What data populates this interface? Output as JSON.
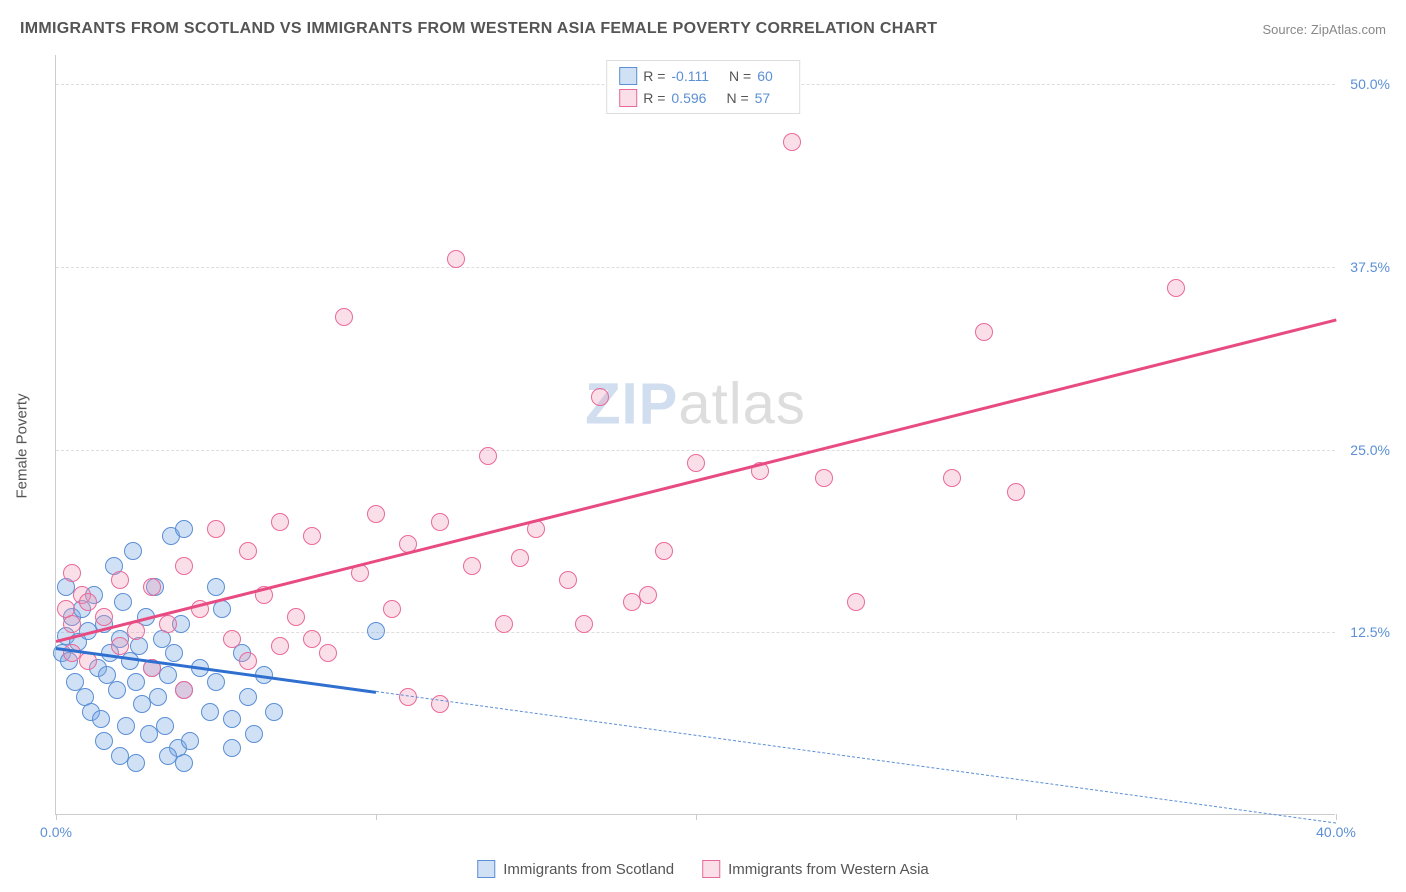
{
  "title": "IMMIGRANTS FROM SCOTLAND VS IMMIGRANTS FROM WESTERN ASIA FEMALE POVERTY CORRELATION CHART",
  "source": "Source: ZipAtlas.com",
  "y_axis_label": "Female Poverty",
  "watermark": {
    "left": "ZIP",
    "right": "atlas"
  },
  "chart": {
    "type": "scatter",
    "xlim": [
      0,
      40
    ],
    "ylim": [
      0,
      52
    ],
    "x_ticks": [
      0,
      10,
      20,
      30,
      40
    ],
    "x_tick_labels": [
      "0.0%",
      "",
      "",
      "",
      "40.0%"
    ],
    "y_ticks": [
      12.5,
      25.0,
      37.5,
      50.0
    ],
    "y_tick_labels": [
      "12.5%",
      "25.0%",
      "37.5%",
      "50.0%"
    ],
    "grid_color": "#dddddd",
    "background_color": "#ffffff",
    "axis_color": "#cccccc",
    "tick_label_color": "#5b8fd6",
    "axis_label_color": "#555555",
    "axis_label_fontsize": 15
  },
  "series": [
    {
      "name": "Immigrants from Scotland",
      "R": "-0.111",
      "N": "60",
      "marker_fill": "rgba(120,170,230,0.35)",
      "marker_stroke": "#5b8fd6",
      "marker_radius": 9,
      "legend_swatch_fill": "rgba(120,170,230,0.35)",
      "legend_swatch_stroke": "#5b8fd6",
      "trend": {
        "color": "#2f6fd0",
        "width": 2.5,
        "x1": 0,
        "y1": 11.5,
        "x2": 10,
        "y2": 8.5,
        "extrapolate_x2": 40,
        "extrapolate_y2": -0.5,
        "dash_color": "#5b8fd6"
      },
      "points": [
        [
          0.2,
          11.0
        ],
        [
          0.3,
          12.2
        ],
        [
          0.4,
          10.5
        ],
        [
          0.5,
          13.5
        ],
        [
          0.6,
          9.0
        ],
        [
          0.7,
          11.8
        ],
        [
          0.8,
          14.0
        ],
        [
          0.9,
          8.0
        ],
        [
          1.0,
          12.5
        ],
        [
          1.1,
          7.0
        ],
        [
          1.2,
          15.0
        ],
        [
          1.3,
          10.0
        ],
        [
          1.4,
          6.5
        ],
        [
          1.5,
          13.0
        ],
        [
          1.6,
          9.5
        ],
        [
          1.7,
          11.0
        ],
        [
          1.8,
          17.0
        ],
        [
          1.9,
          8.5
        ],
        [
          2.0,
          12.0
        ],
        [
          2.1,
          14.5
        ],
        [
          2.2,
          6.0
        ],
        [
          2.3,
          10.5
        ],
        [
          2.4,
          18.0
        ],
        [
          2.5,
          9.0
        ],
        [
          2.6,
          11.5
        ],
        [
          2.7,
          7.5
        ],
        [
          2.8,
          13.5
        ],
        [
          2.9,
          5.5
        ],
        [
          3.0,
          10.0
        ],
        [
          3.1,
          15.5
        ],
        [
          3.2,
          8.0
        ],
        [
          3.3,
          12.0
        ],
        [
          3.4,
          6.0
        ],
        [
          3.5,
          9.5
        ],
        [
          3.6,
          19.0
        ],
        [
          3.7,
          11.0
        ],
        [
          3.8,
          4.5
        ],
        [
          3.9,
          13.0
        ],
        [
          4.0,
          8.5
        ],
        [
          4.5,
          10.0
        ],
        [
          4.2,
          5.0
        ],
        [
          4.8,
          7.0
        ],
        [
          5.0,
          9.0
        ],
        [
          5.2,
          14.0
        ],
        [
          5.5,
          6.5
        ],
        [
          5.8,
          11.0
        ],
        [
          4.0,
          3.5
        ],
        [
          3.5,
          4.0
        ],
        [
          6.0,
          8.0
        ],
        [
          6.2,
          5.5
        ],
        [
          6.5,
          9.5
        ],
        [
          5.0,
          15.5
        ],
        [
          2.0,
          4.0
        ],
        [
          2.5,
          3.5
        ],
        [
          1.5,
          5.0
        ],
        [
          6.8,
          7.0
        ],
        [
          5.5,
          4.5
        ],
        [
          4.0,
          19.5
        ],
        [
          10.0,
          12.5
        ],
        [
          0.3,
          15.5
        ]
      ]
    },
    {
      "name": "Immigrants from Western Asia",
      "R": "0.596",
      "N": "57",
      "marker_fill": "rgba(240,150,180,0.30)",
      "marker_stroke": "#e86a9a",
      "marker_radius": 9,
      "legend_swatch_fill": "rgba(240,150,180,0.30)",
      "legend_swatch_stroke": "#e86a9a",
      "trend": {
        "color": "#e84b82",
        "width": 2.5,
        "x1": 0,
        "y1": 12.0,
        "x2": 40,
        "y2": 34.0
      },
      "points": [
        [
          0.3,
          14.0
        ],
        [
          0.5,
          13.0
        ],
        [
          0.8,
          15.0
        ],
        [
          1.0,
          14.5
        ],
        [
          1.5,
          13.5
        ],
        [
          2.0,
          16.0
        ],
        [
          2.5,
          12.5
        ],
        [
          3.0,
          15.5
        ],
        [
          3.5,
          13.0
        ],
        [
          4.0,
          17.0
        ],
        [
          4.5,
          14.0
        ],
        [
          5.0,
          19.5
        ],
        [
          5.5,
          12.0
        ],
        [
          6.0,
          18.0
        ],
        [
          6.5,
          15.0
        ],
        [
          7.0,
          20.0
        ],
        [
          7.5,
          13.5
        ],
        [
          8.0,
          19.0
        ],
        [
          8.5,
          11.0
        ],
        [
          9.0,
          34.0
        ],
        [
          9.5,
          16.5
        ],
        [
          10.0,
          20.5
        ],
        [
          10.5,
          14.0
        ],
        [
          11.0,
          18.5
        ],
        [
          12.0,
          20.0
        ],
        [
          12.5,
          38.0
        ],
        [
          13.0,
          17.0
        ],
        [
          13.5,
          24.5
        ],
        [
          14.0,
          13.0
        ],
        [
          15.0,
          19.5
        ],
        [
          16.0,
          16.0
        ],
        [
          17.0,
          28.5
        ],
        [
          18.0,
          14.5
        ],
        [
          18.5,
          15.0
        ],
        [
          19.0,
          18.0
        ],
        [
          20.0,
          24.0
        ],
        [
          11.0,
          8.0
        ],
        [
          12.0,
          7.5
        ],
        [
          23.0,
          46.0
        ],
        [
          22.0,
          23.5
        ],
        [
          24.0,
          23.0
        ],
        [
          25.0,
          14.5
        ],
        [
          6.0,
          10.5
        ],
        [
          7.0,
          11.5
        ],
        [
          28.0,
          23.0
        ],
        [
          29.0,
          33.0
        ],
        [
          30.0,
          22.0
        ],
        [
          0.5,
          11.0
        ],
        [
          1.0,
          10.5
        ],
        [
          2.0,
          11.5
        ],
        [
          3.0,
          10.0
        ],
        [
          16.5,
          13.0
        ],
        [
          14.5,
          17.5
        ],
        [
          35.0,
          36.0
        ],
        [
          4.0,
          8.5
        ],
        [
          8.0,
          12.0
        ],
        [
          0.5,
          16.5
        ]
      ]
    }
  ],
  "legend_top_labels": {
    "R": "R =",
    "N": "N ="
  },
  "legend_bottom_labels": [
    "Immigrants from Scotland",
    "Immigrants from Western Asia"
  ]
}
